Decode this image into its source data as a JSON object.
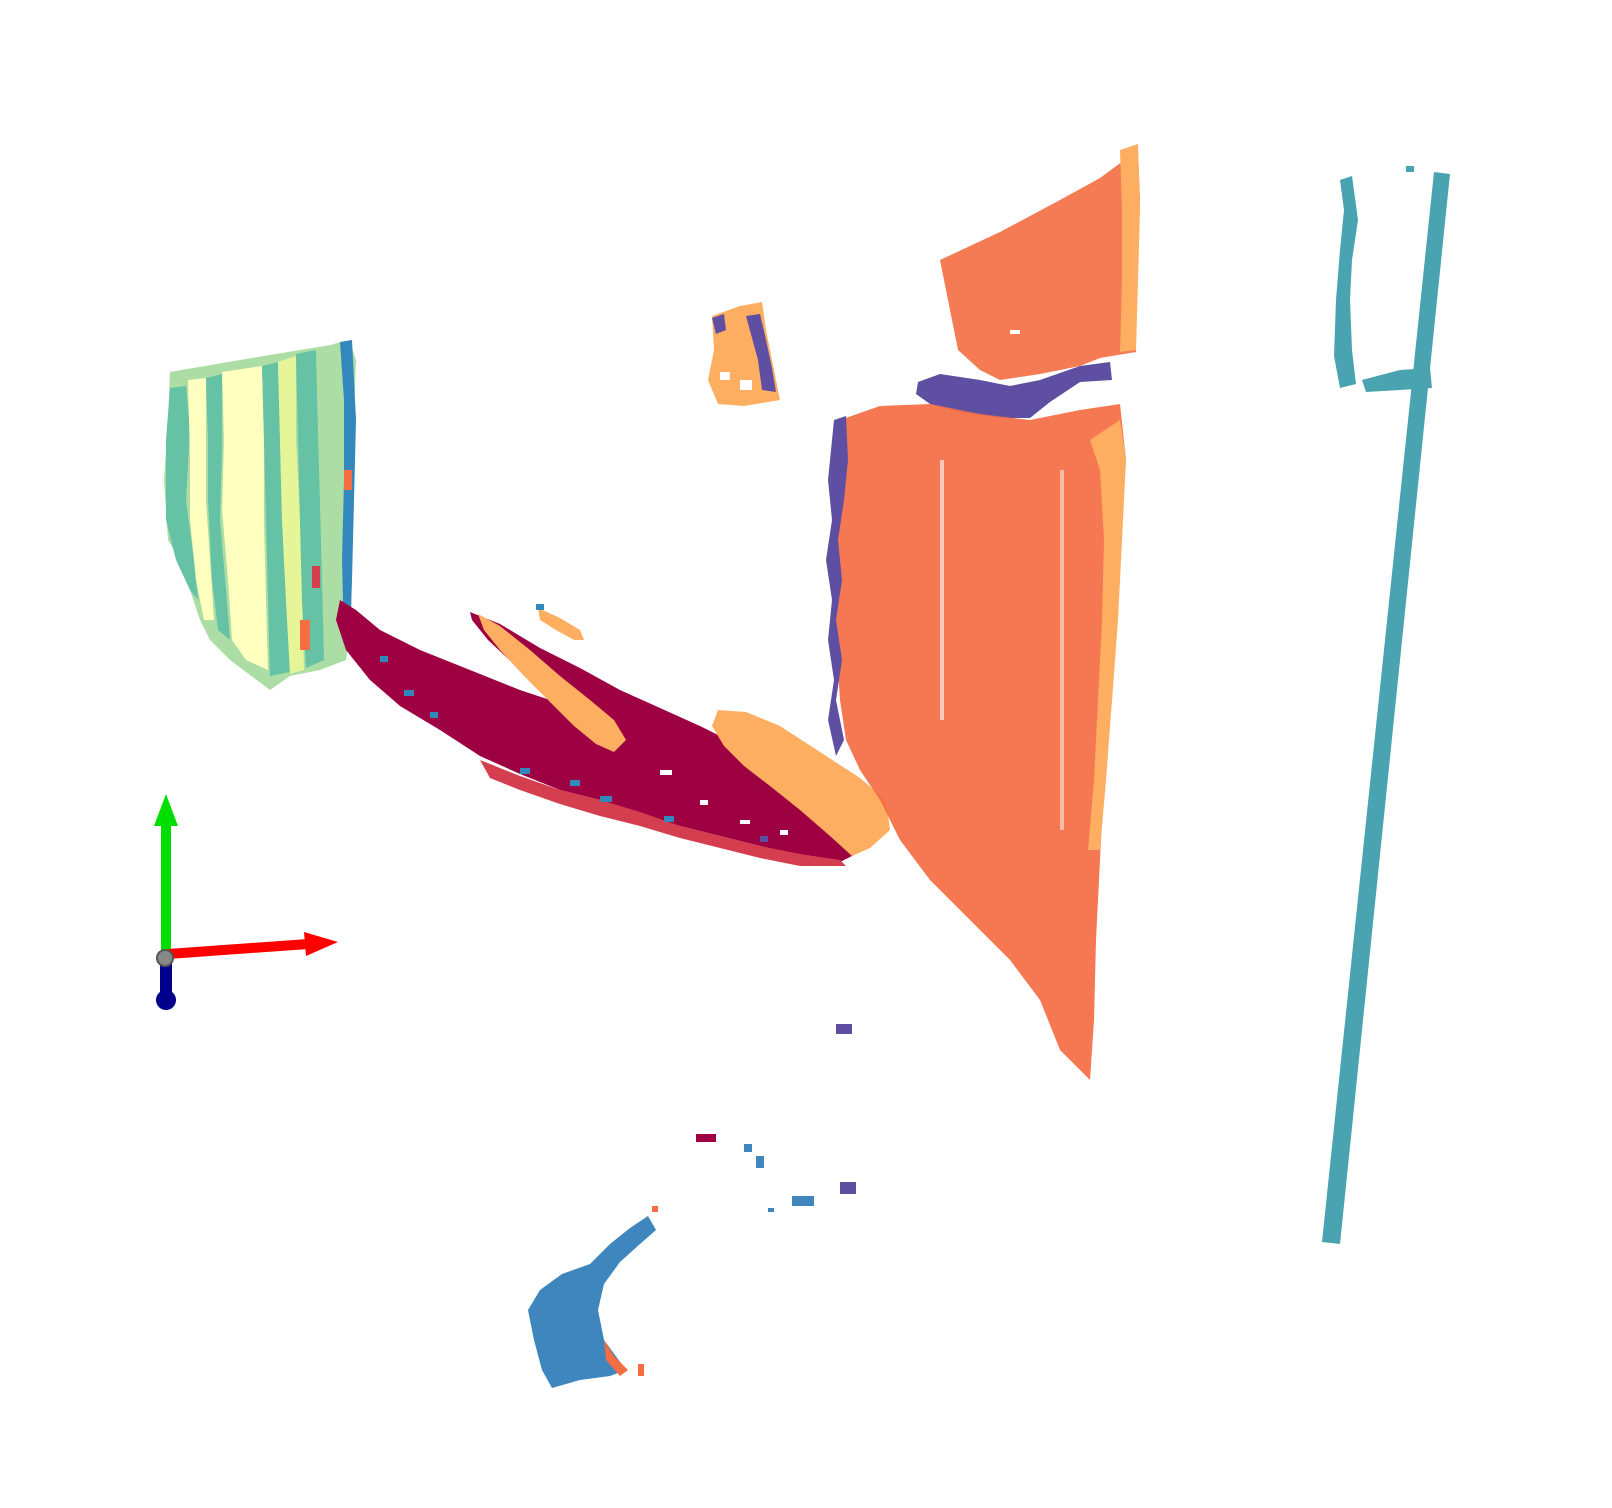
{
  "scene": {
    "background": "#ffffff",
    "palette": {
      "dark_red": "#9e0142",
      "red": "#d53e4f",
      "orange": "#f46d43",
      "light_orange": "#fdae61",
      "peach": "#fee08b",
      "pale_yellow": "#ffffbf",
      "pale_green": "#e6f598",
      "mint": "#abdda4",
      "teal_green": "#66c2a5",
      "teal": "#3288bd",
      "cyan_teal": "#4aa3b0",
      "blue": "#3e86bd",
      "indigo": "#5e4fa2"
    },
    "segments": [
      {
        "name": "wall-panel-stripes",
        "color_key": "teal_green"
      },
      {
        "name": "floor-streak-dark-red",
        "color_key": "dark_red"
      },
      {
        "name": "small-panel-peach",
        "color_key": "light_orange"
      },
      {
        "name": "large-wall-orange",
        "color_key": "orange"
      },
      {
        "name": "vertical-pole-teal",
        "color_key": "cyan_teal"
      },
      {
        "name": "bottom-blob-blue",
        "color_key": "blue"
      }
    ]
  },
  "axes_gizmo": {
    "x_color": "#ff0000",
    "y_color": "#00dd00",
    "z_color": "#00008b"
  }
}
